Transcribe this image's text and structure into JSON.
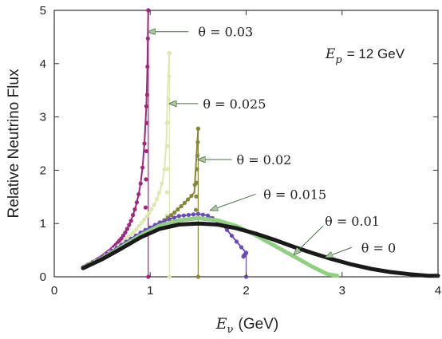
{
  "chart_data": {
    "type": "scatter",
    "xlabel": {
      "symbol": "E",
      "subscript": "ν",
      "unit": "(GeV)"
    },
    "ylabel": "Relative Neutrino Flux",
    "xlim": [
      0,
      4
    ],
    "ylim": [
      0,
      5
    ],
    "xticks": [
      "0",
      "1",
      "2",
      "3",
      "4"
    ],
    "yticks": [
      "0",
      "1",
      "2",
      "3",
      "4",
      "5"
    ],
    "grid": false,
    "legend": "none",
    "inset_text": {
      "symbol": "E",
      "subscript": "p",
      "value": "= 12 GeV"
    },
    "series": [
      {
        "label": "θ = 0.03",
        "color": "#a0267e",
        "cutoff": 0.98,
        "peak": 5.0,
        "tip": 1.3,
        "points": [
          [
            0.3,
            0.18
          ],
          [
            0.4,
            0.27
          ],
          [
            0.5,
            0.38
          ],
          [
            0.6,
            0.52
          ],
          [
            0.7,
            0.72
          ],
          [
            0.75,
            0.86
          ],
          [
            0.8,
            1.05
          ],
          [
            0.85,
            1.32
          ],
          [
            0.88,
            1.55
          ],
          [
            0.9,
            1.75
          ],
          [
            0.92,
            2.05
          ],
          [
            0.94,
            2.5
          ],
          [
            0.95,
            2.85
          ],
          [
            0.96,
            3.2
          ],
          [
            0.97,
            3.85
          ],
          [
            0.98,
            5.0
          ]
        ]
      },
      {
        "label": "θ = 0.025",
        "color": "#dceab0",
        "cutoff": 1.2,
        "peak": 4.2,
        "tip": 1.15,
        "points": [
          [
            0.3,
            0.18
          ],
          [
            0.5,
            0.36
          ],
          [
            0.7,
            0.62
          ],
          [
            0.85,
            0.88
          ],
          [
            0.95,
            1.1
          ],
          [
            1.0,
            1.22
          ],
          [
            1.05,
            1.38
          ],
          [
            1.1,
            1.6
          ],
          [
            1.13,
            1.82
          ],
          [
            1.15,
            2.05
          ],
          [
            1.17,
            2.6
          ],
          [
            1.18,
            3.4
          ],
          [
            1.2,
            4.2
          ]
        ]
      },
      {
        "label": "θ = 0.02",
        "color": "#86873a",
        "cutoff": 1.5,
        "peak": 2.78,
        "tip": 1.0,
        "points": [
          [
            0.3,
            0.18
          ],
          [
            0.5,
            0.35
          ],
          [
            0.7,
            0.55
          ],
          [
            0.9,
            0.78
          ],
          [
            1.1,
            1.0
          ],
          [
            1.25,
            1.2
          ],
          [
            1.35,
            1.37
          ],
          [
            1.42,
            1.5
          ],
          [
            1.46,
            1.58
          ],
          [
            1.48,
            2.2
          ],
          [
            1.5,
            2.78
          ]
        ]
      },
      {
        "label": "θ = 0.015",
        "color": "#6b4bbb",
        "cutoff": 2.0,
        "peak": 0.45,
        "tip": 0.38,
        "points": [
          [
            0.3,
            0.18
          ],
          [
            0.5,
            0.37
          ],
          [
            0.7,
            0.6
          ],
          [
            0.9,
            0.83
          ],
          [
            1.1,
            1.02
          ],
          [
            1.3,
            1.14
          ],
          [
            1.5,
            1.18
          ],
          [
            1.6,
            1.15
          ],
          [
            1.7,
            1.05
          ],
          [
            1.8,
            0.88
          ],
          [
            1.9,
            0.66
          ],
          [
            2.0,
            0.45
          ]
        ]
      },
      {
        "label": "θ = 0.01",
        "color": "#92cf82",
        "cutoff": null,
        "peak": null,
        "tip": null,
        "points": [
          [
            0.3,
            0.17
          ],
          [
            0.5,
            0.34
          ],
          [
            0.7,
            0.56
          ],
          [
            0.9,
            0.78
          ],
          [
            1.1,
            0.96
          ],
          [
            1.3,
            1.06
          ],
          [
            1.5,
            1.1
          ],
          [
            1.7,
            1.06
          ],
          [
            1.9,
            0.95
          ],
          [
            2.1,
            0.78
          ],
          [
            2.3,
            0.58
          ],
          [
            2.5,
            0.38
          ],
          [
            2.7,
            0.18
          ],
          [
            2.85,
            0.05
          ],
          [
            2.95,
            0.02
          ]
        ]
      },
      {
        "label": "θ = 0",
        "color": "#1a1a1a",
        "cutoff": null,
        "peak": null,
        "tip": null,
        "points": [
          [
            0.3,
            0.16
          ],
          [
            0.5,
            0.33
          ],
          [
            0.7,
            0.53
          ],
          [
            0.9,
            0.74
          ],
          [
            1.1,
            0.9
          ],
          [
            1.3,
            0.98
          ],
          [
            1.5,
            1.0
          ],
          [
            1.7,
            0.98
          ],
          [
            1.9,
            0.91
          ],
          [
            2.1,
            0.81
          ],
          [
            2.3,
            0.69
          ],
          [
            2.5,
            0.56
          ],
          [
            2.7,
            0.44
          ],
          [
            2.9,
            0.33
          ],
          [
            3.1,
            0.23
          ],
          [
            3.3,
            0.15
          ],
          [
            3.5,
            0.09
          ],
          [
            3.7,
            0.05
          ],
          [
            3.9,
            0.02
          ],
          [
            4.0,
            0.02
          ]
        ]
      }
    ],
    "annotations": [
      {
        "text": "θ = 0.03",
        "arrow_to": [
          0.98,
          4.6
        ],
        "arrow_from": [
          1.4,
          4.6
        ],
        "text_at": [
          1.5,
          4.6
        ]
      },
      {
        "text": "θ = 0.025",
        "arrow_to": [
          1.2,
          3.25
        ],
        "arrow_from": [
          1.5,
          3.25
        ],
        "text_at": [
          1.55,
          3.25
        ]
      },
      {
        "text": "θ = 0.02",
        "arrow_to": [
          1.5,
          2.2
        ],
        "arrow_from": [
          1.85,
          2.2
        ],
        "text_at": [
          1.9,
          2.2
        ]
      },
      {
        "text": "θ = 0.015",
        "arrow_to": [
          1.63,
          1.25
        ],
        "arrow_from": [
          2.1,
          1.55
        ],
        "text_at": [
          2.18,
          1.55
        ]
      },
      {
        "text": "θ = 0.01",
        "arrow_to": [
          2.5,
          0.42
        ],
        "arrow_from": [
          2.8,
          0.95
        ],
        "text_at": [
          2.82,
          1.05
        ]
      },
      {
        "text": "θ = 0",
        "arrow_to": [
          2.83,
          0.37
        ],
        "arrow_from": [
          3.1,
          0.55
        ],
        "text_at": [
          3.2,
          0.55
        ]
      }
    ]
  }
}
